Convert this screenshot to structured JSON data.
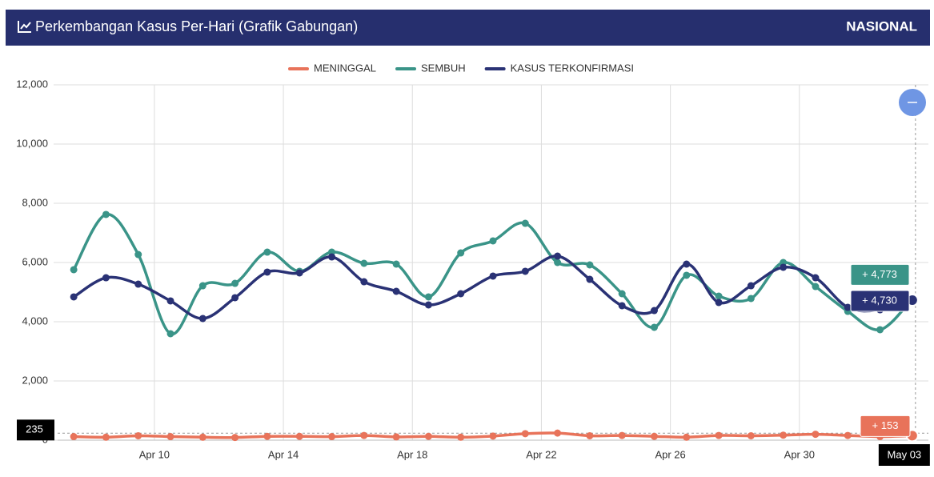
{
  "chart_data": {
    "type": "line",
    "title": "Perkembangan Kasus Per-Hari (Grafik Gabungan)",
    "region": "NASIONAL",
    "x": [
      "Apr 07",
      "Apr 08",
      "Apr 09",
      "Apr 10",
      "Apr 11",
      "Apr 12",
      "Apr 13",
      "Apr 14",
      "Apr 15",
      "Apr 16",
      "Apr 17",
      "Apr 18",
      "Apr 19",
      "Apr 20",
      "Apr 21",
      "Apr 22",
      "Apr 23",
      "Apr 24",
      "Apr 25",
      "Apr 26",
      "Apr 27",
      "Apr 28",
      "Apr 29",
      "Apr 30",
      "May 01",
      "May 02",
      "May 03"
    ],
    "series": [
      {
        "name": "MENINGGAL",
        "color": "#e8735a",
        "values": [
          120,
          100,
          150,
          120,
          100,
          90,
          130,
          130,
          120,
          160,
          110,
          130,
          100,
          140,
          220,
          240,
          150,
          160,
          130,
          100,
          160,
          150,
          170,
          200,
          160,
          120,
          153
        ],
        "value_labels": [
          null,
          null,
          null,
          null,
          null,
          null,
          null,
          null,
          null,
          null,
          null,
          null,
          null,
          null,
          null,
          null,
          null,
          null,
          null,
          null,
          null,
          null,
          null,
          null,
          null,
          null,
          "+ 153"
        ]
      },
      {
        "name": "SEMBUH",
        "color": "#3a9488",
        "values": [
          5757,
          7622,
          6270,
          3595,
          5216,
          5297,
          6351,
          5703,
          6351,
          5973,
          5946,
          4838,
          6324,
          6730,
          7324,
          6000,
          5919,
          4946,
          3811,
          5568,
          4865,
          4784,
          6000,
          5189,
          4351,
          3730,
          4773
        ],
        "value_labels": [
          null,
          null,
          null,
          null,
          null,
          null,
          null,
          null,
          null,
          null,
          null,
          null,
          null,
          null,
          null,
          null,
          null,
          null,
          null,
          null,
          null,
          null,
          null,
          null,
          null,
          null,
          "+ 4,773"
        ]
      },
      {
        "name": "KASUS TERKONFIRMASI",
        "color": "#2a3275",
        "values": [
          4838,
          5486,
          5270,
          4703,
          4108,
          4811,
          5676,
          5649,
          6189,
          5351,
          5027,
          4568,
          4946,
          5541,
          5703,
          6216,
          5432,
          4541,
          4378,
          5946,
          4649,
          5216,
          5838,
          5486,
          4486,
          4405,
          4730
        ],
        "value_labels": [
          null,
          null,
          null,
          null,
          null,
          null,
          null,
          null,
          null,
          null,
          null,
          null,
          null,
          null,
          null,
          null,
          null,
          null,
          null,
          null,
          null,
          null,
          null,
          null,
          null,
          null,
          "+ 4,730"
        ]
      }
    ],
    "xlim": [
      "Apr 07",
      "May 04"
    ],
    "xticks": [
      "Apr 10",
      "Apr 14",
      "Apr 18",
      "Apr 22",
      "Apr 26",
      "Apr 30"
    ],
    "ylim": [
      0,
      12000
    ],
    "yticks": [
      0,
      {
        "value": 2000,
        "label": "2,000"
      },
      {
        "value": 4000,
        "label": "4,000"
      },
      {
        "value": 6000,
        "label": "6,000"
      },
      {
        "value": 8000,
        "label": "8,000"
      },
      {
        "value": 10000,
        "label": "10,000"
      },
      {
        "value": 12000,
        "label": "12,000"
      }
    ],
    "grid": true,
    "legend": "top",
    "crosshair": {
      "x": "May 03",
      "y": 235
    }
  }
}
